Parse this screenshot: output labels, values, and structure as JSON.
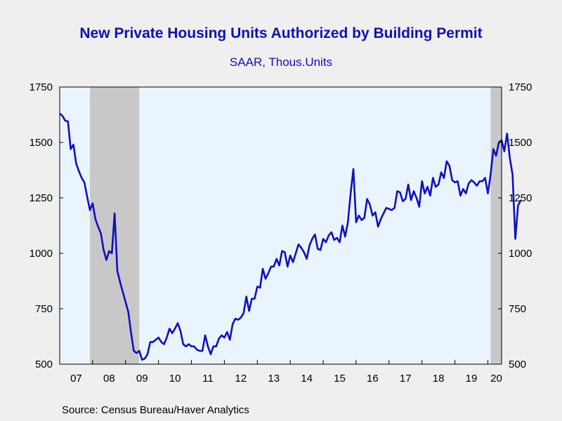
{
  "chart_data": {
    "type": "line",
    "title": "New Private Housing Units Authorized by Building Permit",
    "subtitle": "SAAR, Thous.Units",
    "source": "Source:  Census Bureau/Haver Analytics",
    "ylim": [
      500,
      1750
    ],
    "yticks": [
      "500",
      "750",
      "1000",
      "1250",
      "1500",
      "1750"
    ],
    "xlim": [
      2007.0,
      2020.4167
    ],
    "xticks": [
      "07",
      "08",
      "09",
      "10",
      "11",
      "12",
      "13",
      "14",
      "15",
      "16",
      "17",
      "18",
      "19",
      "20"
    ],
    "grid": false,
    "recessions": [
      [
        2007.9167,
        2009.4167
      ],
      [
        2020.0833,
        2020.4167
      ]
    ],
    "colors": {
      "line": "#1010c0",
      "plot_bg": "#eaf4ff",
      "recession": "#c8c8c8",
      "title": "#1010b8"
    },
    "series": [
      {
        "start": 2007.0,
        "step_months": 1,
        "values": [
          1630,
          1620,
          1598,
          1595,
          1470,
          1490,
          1405,
          1370,
          1340,
          1320,
          1255,
          1195,
          1225,
          1155,
          1120,
          1090,
          1015,
          970,
          1010,
          1000,
          1180,
          920,
          870,
          825,
          780,
          735,
          640,
          560,
          550,
          560,
          520,
          525,
          545,
          600,
          600,
          610,
          620,
          600,
          590,
          620,
          660,
          640,
          660,
          685,
          650,
          590,
          580,
          590,
          580,
          580,
          565,
          560,
          560,
          630,
          580,
          545,
          580,
          580,
          615,
          630,
          620,
          645,
          610,
          680,
          705,
          700,
          710,
          730,
          805,
          740,
          795,
          795,
          850,
          845,
          930,
          885,
          910,
          940,
          940,
          975,
          945,
          1010,
          1005,
          940,
          990,
          960,
          1000,
          1040,
          1025,
          1005,
          975,
          1035,
          1065,
          1085,
          1020,
          1015,
          1065,
          1050,
          1080,
          1095,
          1060,
          1070,
          1050,
          1125,
          1075,
          1140,
          1270,
          1380,
          1140,
          1170,
          1150,
          1160,
          1245,
          1220,
          1170,
          1185,
          1120,
          1155,
          1180,
          1205,
          1200,
          1195,
          1205,
          1280,
          1275,
          1235,
          1245,
          1310,
          1240,
          1280,
          1250,
          1210,
          1325,
          1270,
          1300,
          1260,
          1340,
          1300,
          1310,
          1365,
          1340,
          1415,
          1395,
          1330,
          1320,
          1325,
          1260,
          1290,
          1270,
          1315,
          1330,
          1320,
          1305,
          1325,
          1325,
          1340,
          1270,
          1355,
          1470,
          1440,
          1500,
          1510,
          1460,
          1540,
          1430,
          1355,
          1065,
          1215,
          1240
        ]
      }
    ]
  }
}
